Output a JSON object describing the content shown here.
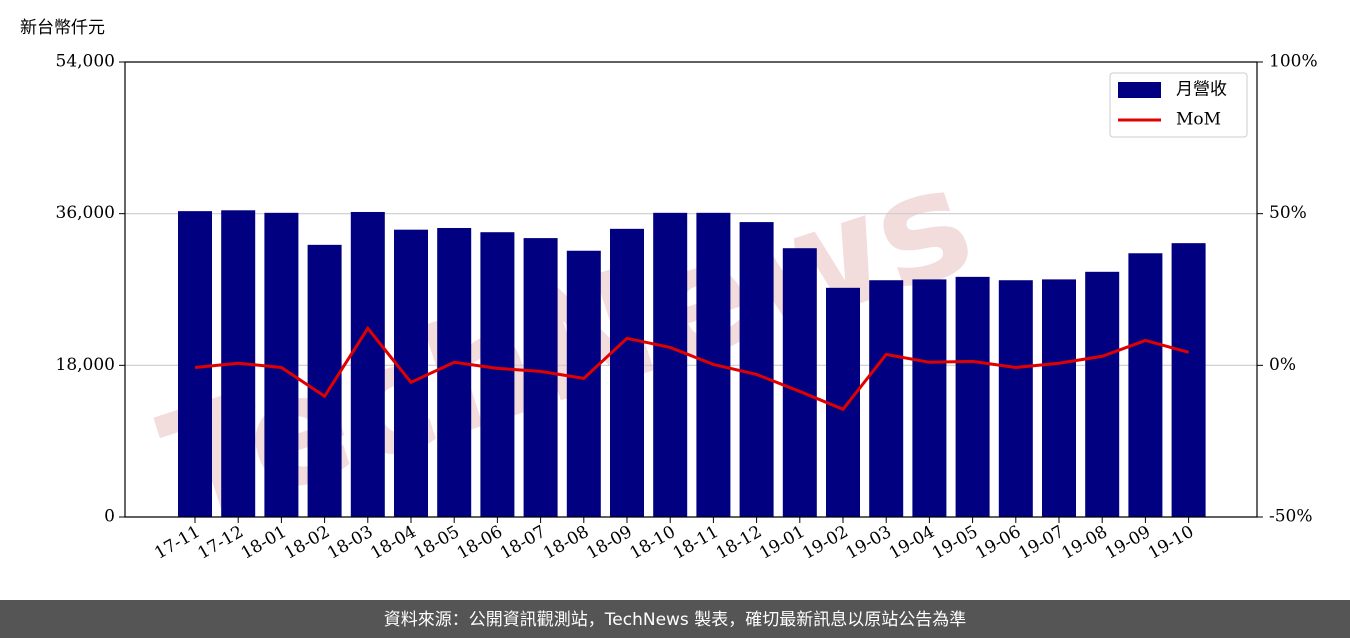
{
  "chart_data": {
    "type": "bar",
    "y_label": "新台幣仟元",
    "watermark": "TechNews",
    "footer": "資料來源：公開資訊觀測站，TechNews 製表，確切最新訊息以原站公告為準",
    "categories": [
      "17-11",
      "17-12",
      "18-01",
      "18-02",
      "18-03",
      "18-04",
      "18-05",
      "18-06",
      "18-07",
      "18-08",
      "18-09",
      "18-10",
      "18-11",
      "18-12",
      "19-01",
      "19-02",
      "19-03",
      "19-04",
      "19-05",
      "19-06",
      "19-07",
      "19-08",
      "19-09",
      "19-10"
    ],
    "series": [
      {
        "name": "月營收",
        "type": "bar",
        "color": "#000080",
        "values": [
          36300,
          36400,
          36100,
          32300,
          36200,
          34100,
          34300,
          33800,
          33100,
          31600,
          34200,
          36100,
          36100,
          35000,
          31900,
          27200,
          28100,
          28200,
          28500,
          28100,
          28200,
          29100,
          31300,
          32500
        ]
      },
      {
        "name": "MoM",
        "type": "line",
        "color": "#e00000",
        "axis": "y2",
        "values": [
          -0.7,
          0.7,
          -0.7,
          -10.2,
          12.2,
          -5.6,
          1.0,
          -1.0,
          -2.0,
          -4.3,
          8.9,
          5.9,
          0.3,
          -3.0,
          -8.6,
          -14.5,
          3.6,
          1.0,
          1.3,
          -0.7,
          0.7,
          3.0,
          8.2,
          4.3
        ]
      }
    ],
    "ylim": [
      0,
      54000
    ],
    "yticks": [
      0,
      {
        "value": 18000,
        "label": "18,000"
      },
      {
        "value": 36000,
        "label": "36,000"
      },
      {
        "value": 54000,
        "label": "54,000"
      }
    ],
    "y2lim": [
      -50,
      100
    ],
    "y2ticks": [
      {
        "value": -50,
        "label": "-50%"
      },
      {
        "value": 0,
        "label": "0%"
      },
      {
        "value": 50,
        "label": "50%"
      },
      {
        "value": 100,
        "label": "100%"
      }
    ],
    "grid": true,
    "legend": "upper right"
  }
}
